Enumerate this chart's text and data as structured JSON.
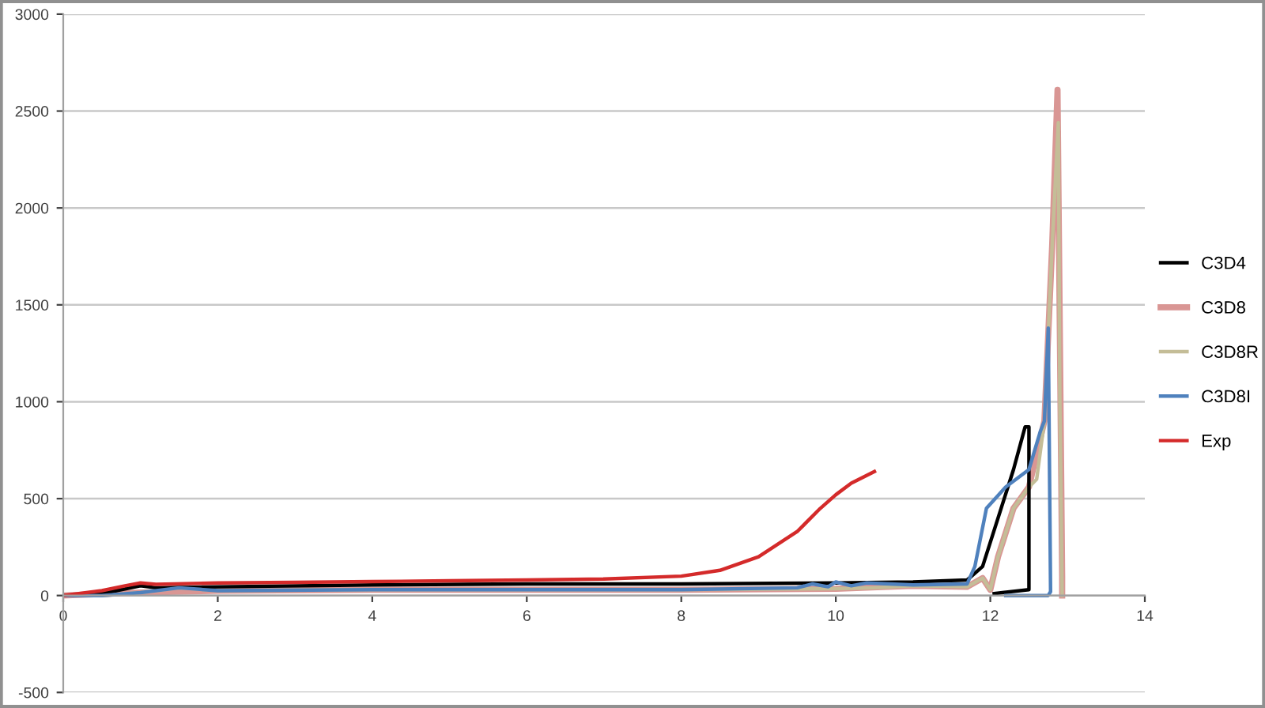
{
  "chart_data": {
    "type": "line",
    "xlim": [
      0,
      14
    ],
    "xticks": [
      0,
      2,
      4,
      6,
      8,
      10,
      12,
      14
    ],
    "ylim": [
      -500,
      3000
    ],
    "yticks": [
      -500,
      0,
      500,
      1000,
      1500,
      2000,
      2500,
      3000
    ],
    "grid": "y",
    "legend": "right",
    "marker": "none",
    "line_style": "solid",
    "series": [
      {
        "name": "C3D4",
        "color": "#000000",
        "x": [
          0,
          0.5,
          1,
          1.2,
          2,
          4,
          6,
          8,
          10,
          11,
          11.7,
          11.9,
          12.1,
          12.3,
          12.45,
          12.5,
          12.5,
          12.05
        ],
        "values": [
          0,
          10,
          50,
          40,
          45,
          55,
          60,
          60,
          65,
          70,
          80,
          150,
          400,
          650,
          870,
          870,
          30,
          10
        ]
      },
      {
        "name": "C3D8",
        "color": "#d99694",
        "x": [
          0,
          1,
          2,
          4,
          6,
          8,
          10,
          11,
          11.7,
          11.9,
          12,
          12.1,
          12.3,
          12.5,
          12.7,
          12.8,
          12.87,
          12.93,
          12.93
        ],
        "values": [
          0,
          15,
          25,
          30,
          30,
          30,
          35,
          50,
          45,
          90,
          30,
          200,
          450,
          560,
          900,
          1800,
          2610,
          100,
          0
        ]
      },
      {
        "name": "C3D8R",
        "color": "#c4bd97",
        "x": [
          0,
          0.5,
          1,
          1.5,
          2,
          4,
          6,
          8,
          10,
          10.5,
          11,
          11.7,
          11.9,
          12,
          12.1,
          12.3,
          12.5,
          12.6,
          12.7,
          12.8,
          12.88,
          12.9,
          12.93
        ],
        "values": [
          0,
          0,
          15,
          40,
          25,
          30,
          30,
          30,
          35,
          40,
          50,
          45,
          90,
          30,
          200,
          450,
          560,
          600,
          900,
          1800,
          2440,
          1000,
          0
        ]
      },
      {
        "name": "C3D8I",
        "color": "#4f81bd",
        "x": [
          0,
          0.5,
          1,
          1.5,
          2,
          4,
          6,
          8,
          9.5,
          9.7,
          9.9,
          10,
          10.2,
          10.4,
          11,
          11.7,
          11.8,
          11.95,
          12.2,
          12.5,
          12.65,
          12.7,
          12.75,
          12.78,
          12.75,
          12.2
        ],
        "values": [
          0,
          0,
          15,
          40,
          25,
          30,
          30,
          30,
          40,
          60,
          45,
          70,
          50,
          65,
          55,
          60,
          150,
          450,
          560,
          650,
          850,
          900,
          1380,
          20,
          0,
          0
        ]
      },
      {
        "name": "Exp",
        "color": "#d42a2a",
        "x": [
          0,
          0.5,
          0.8,
          1,
          1.2,
          2,
          3,
          4,
          5,
          6,
          7,
          8,
          8.5,
          9,
          9.5,
          9.8,
          10,
          10.2,
          10.5
        ],
        "values": [
          0,
          25,
          50,
          65,
          58,
          65,
          68,
          72,
          76,
          80,
          85,
          100,
          130,
          200,
          330,
          450,
          520,
          580,
          640
        ]
      }
    ]
  }
}
